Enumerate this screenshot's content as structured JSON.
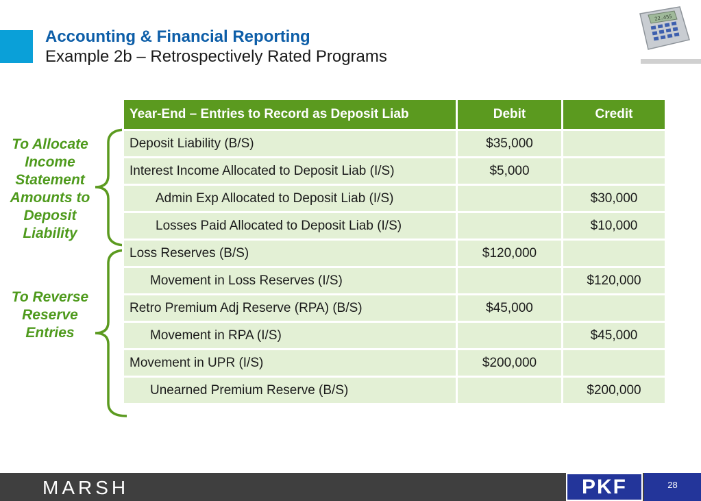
{
  "header": {
    "title": "Accounting & Financial Reporting",
    "subtitle": "Example 2b – Retrospectively Rated Programs"
  },
  "side_labels": {
    "allocate": "To Allocate Income Statement Amounts to Deposit Liability",
    "reverse": "To Reverse Reserve Entries"
  },
  "table": {
    "headers": [
      "Year-End – Entries to Record as Deposit Liab",
      "Debit",
      "Credit"
    ],
    "rows": [
      {
        "account": "Deposit Liability (B/S)",
        "debit": "$35,000",
        "credit": ""
      },
      {
        "account": "Interest Income Allocated to Deposit Liab (I/S)",
        "debit": "$5,000",
        "credit": ""
      },
      {
        "account": "Admin Exp Allocated to Deposit Liab (I/S)",
        "debit": "",
        "credit": "$30,000"
      },
      {
        "account": "Losses Paid Allocated to Deposit Liab (I/S)",
        "debit": "",
        "credit": "$10,000"
      },
      {
        "account": "Loss Reserves (B/S)",
        "debit": "$120,000",
        "credit": ""
      },
      {
        "account": "Movement in Loss Reserves (I/S)",
        "debit": "",
        "credit": "$120,000"
      },
      {
        "account": "Retro Premium Adj Reserve (RPA) (B/S)",
        "debit": "$45,000",
        "credit": ""
      },
      {
        "account": "Movement in RPA (I/S)",
        "debit": "",
        "credit": "$45,000"
      },
      {
        "account": "Movement in UPR (I/S)",
        "debit": "$200,000",
        "credit": ""
      },
      {
        "account": "Unearned Premium Reserve (B/S)",
        "debit": "",
        "credit": "$200,000"
      }
    ]
  },
  "footer": {
    "brand": "MARSH",
    "partner": "PKF",
    "page_number": "28"
  },
  "calculator_display": "22.455",
  "colors": {
    "accent_blue": "#0aa0d8",
    "title_blue": "#0d5ea8",
    "header_green": "#5b9a1f",
    "row_green": "#e3f0d5",
    "label_green": "#4e9a1c",
    "footer_dark": "#3f3f3f",
    "pkf_navy": "#23359a"
  },
  "icons": {
    "calculator": "calculator-icon",
    "bracket": "curly-brace-icon"
  }
}
